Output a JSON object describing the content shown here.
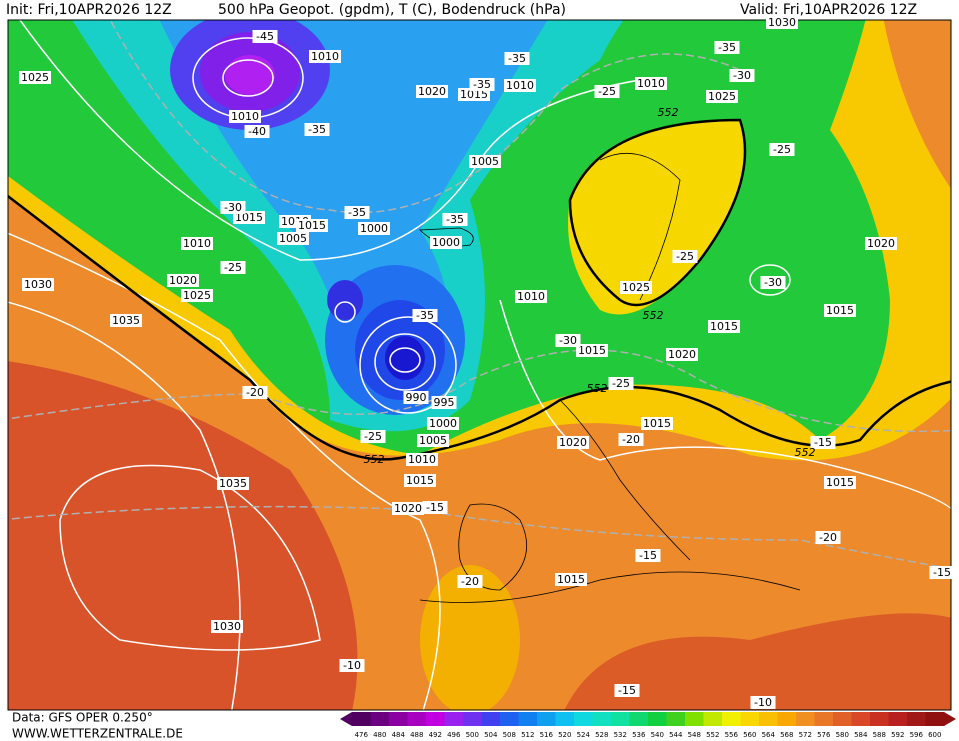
{
  "header": {
    "init": "Init: Fri,10APR2026 12Z",
    "title": "500 hPa Geopot. (gpdm), T (C), Bodendruck (hPa)",
    "valid": "Valid: Fri,10APR2026 12Z"
  },
  "footer": {
    "data": "Data: GFS OPER 0.250°",
    "site": "WWW.WETTERZENTRALE.DE"
  },
  "map": {
    "isobar_labels": [
      1025,
      1010,
      1010,
      1020,
      1015,
      1010,
      1010,
      1025,
      1030,
      1005,
      1015,
      1010,
      1010,
      1015,
      1005,
      1000,
      1000,
      1020,
      1025,
      1030,
      1035,
      1010,
      1025,
      1015,
      1015,
      1020,
      1015,
      1020,
      990,
      995,
      1000,
      1005,
      1010,
      1015,
      1020,
      1015,
      1020,
      1015,
      1015,
      1030,
      1035
    ],
    "temperature_labels": [
      -45,
      -40,
      -35,
      -35,
      -35,
      -35,
      -30,
      -25,
      -30,
      -35,
      -35,
      -25,
      -25,
      -25,
      -30,
      -35,
      -30,
      -25,
      -20,
      -25,
      -20,
      -15,
      -15,
      -20,
      -15,
      -15,
      -20,
      -10,
      -15,
      -10
    ],
    "geopotential_labels": [
      552,
      552,
      552,
      552,
      552
    ]
  },
  "legend": {
    "ticks": [
      476,
      480,
      484,
      488,
      492,
      496,
      500,
      504,
      508,
      512,
      516,
      520,
      524,
      528,
      532,
      536,
      540,
      544,
      548,
      552,
      556,
      560,
      564,
      568,
      572,
      576,
      580,
      584,
      588,
      592,
      596,
      600
    ],
    "colors": [
      "#500060",
      "#6a0080",
      "#8a00a0",
      "#a800c0",
      "#c000e0",
      "#9a20f0",
      "#7030f0",
      "#4040f0",
      "#2060f0",
      "#1080f0",
      "#10a0f0",
      "#10c0f0",
      "#10d8e0",
      "#10e0c0",
      "#10e0a0",
      "#10d870",
      "#10d040",
      "#40d020",
      "#80e000",
      "#c0e800",
      "#f0f000",
      "#f8d800",
      "#f8c000",
      "#f8a800",
      "#f09020",
      "#e87828",
      "#e06028",
      "#d84828",
      "#c83020",
      "#b82020",
      "#a01818",
      "#901010"
    ]
  }
}
